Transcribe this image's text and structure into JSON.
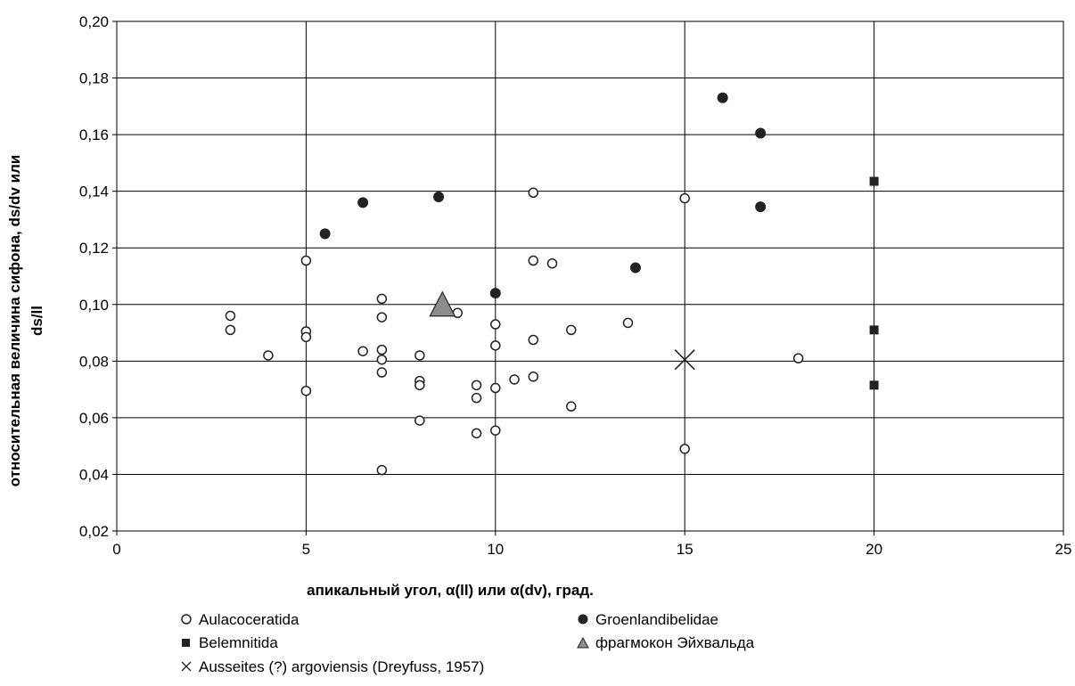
{
  "chart_data": {
    "type": "scatter",
    "xlabel": "апикальный угол, α(ll) или α(dv), град.",
    "ylabel_lines": [
      "относительная величина сифона, ds/dv или",
      "ds/ll"
    ],
    "xlim": [
      0,
      25
    ],
    "ylim": [
      0.02,
      0.2
    ],
    "xticks": [
      0,
      5,
      10,
      15,
      20,
      25
    ],
    "xtick_labels": [
      "0",
      "5",
      "10",
      "15",
      "20",
      "25"
    ],
    "yticks": [
      0.02,
      0.04,
      0.06,
      0.08,
      0.1,
      0.12,
      0.14,
      0.16,
      0.18,
      0.2
    ],
    "ytick_labels": [
      "0,02",
      "0,04",
      "0,06",
      "0,08",
      "0,10",
      "0,12",
      "0,14",
      "0,16",
      "0,18",
      "0,20"
    ],
    "grid": true,
    "legend_position": "bottom",
    "colors": {
      "dark": "#222222",
      "triangle": "#8c8c8c",
      "grid": "#000000"
    },
    "series": [
      {
        "name": "Aulacoceratida",
        "marker": "circle-open",
        "points": [
          [
            3,
            0.096
          ],
          [
            3,
            0.091
          ],
          [
            4,
            0.082
          ],
          [
            5,
            0.1155
          ],
          [
            5,
            0.0905
          ],
          [
            5,
            0.0885
          ],
          [
            5,
            0.0695
          ],
          [
            6.5,
            0.0835
          ],
          [
            7,
            0.102
          ],
          [
            7,
            0.0955
          ],
          [
            7,
            0.084
          ],
          [
            7,
            0.0805
          ],
          [
            7,
            0.076
          ],
          [
            7,
            0.0415
          ],
          [
            8,
            0.082
          ],
          [
            8,
            0.073
          ],
          [
            8,
            0.0715
          ],
          [
            8,
            0.059
          ],
          [
            9,
            0.097
          ],
          [
            9.5,
            0.0715
          ],
          [
            9.5,
            0.067
          ],
          [
            9.5,
            0.0545
          ],
          [
            10,
            0.093
          ],
          [
            10,
            0.0855
          ],
          [
            10,
            0.0705
          ],
          [
            10,
            0.0555
          ],
          [
            10.5,
            0.0735
          ],
          [
            11,
            0.1395
          ],
          [
            11,
            0.1155
          ],
          [
            11,
            0.0875
          ],
          [
            11,
            0.0745
          ],
          [
            11.5,
            0.1145
          ],
          [
            12,
            0.091
          ],
          [
            12,
            0.064
          ],
          [
            13.5,
            0.0935
          ],
          [
            15,
            0.1375
          ],
          [
            15,
            0.049
          ],
          [
            18,
            0.081
          ]
        ]
      },
      {
        "name": "Groenlandibelidae",
        "marker": "circle-filled",
        "points": [
          [
            5.5,
            0.125
          ],
          [
            6.5,
            0.136
          ],
          [
            8.5,
            0.138
          ],
          [
            10,
            0.104
          ],
          [
            13.7,
            0.113
          ],
          [
            16,
            0.173
          ],
          [
            17,
            0.1605
          ],
          [
            17,
            0.1345
          ]
        ]
      },
      {
        "name": "Belemnitida",
        "marker": "square-filled",
        "points": [
          [
            20,
            0.1435
          ],
          [
            20,
            0.091
          ],
          [
            20,
            0.0715
          ]
        ]
      },
      {
        "name": "фрагмокон Эйхвальда",
        "marker": "triangle",
        "points": [
          [
            8.6,
            0.1
          ]
        ]
      },
      {
        "name": "Ausseites (?) argoviensis (Dreyfuss, 1957)",
        "marker": "cross",
        "points": [
          [
            15,
            0.0805
          ]
        ]
      }
    ]
  }
}
